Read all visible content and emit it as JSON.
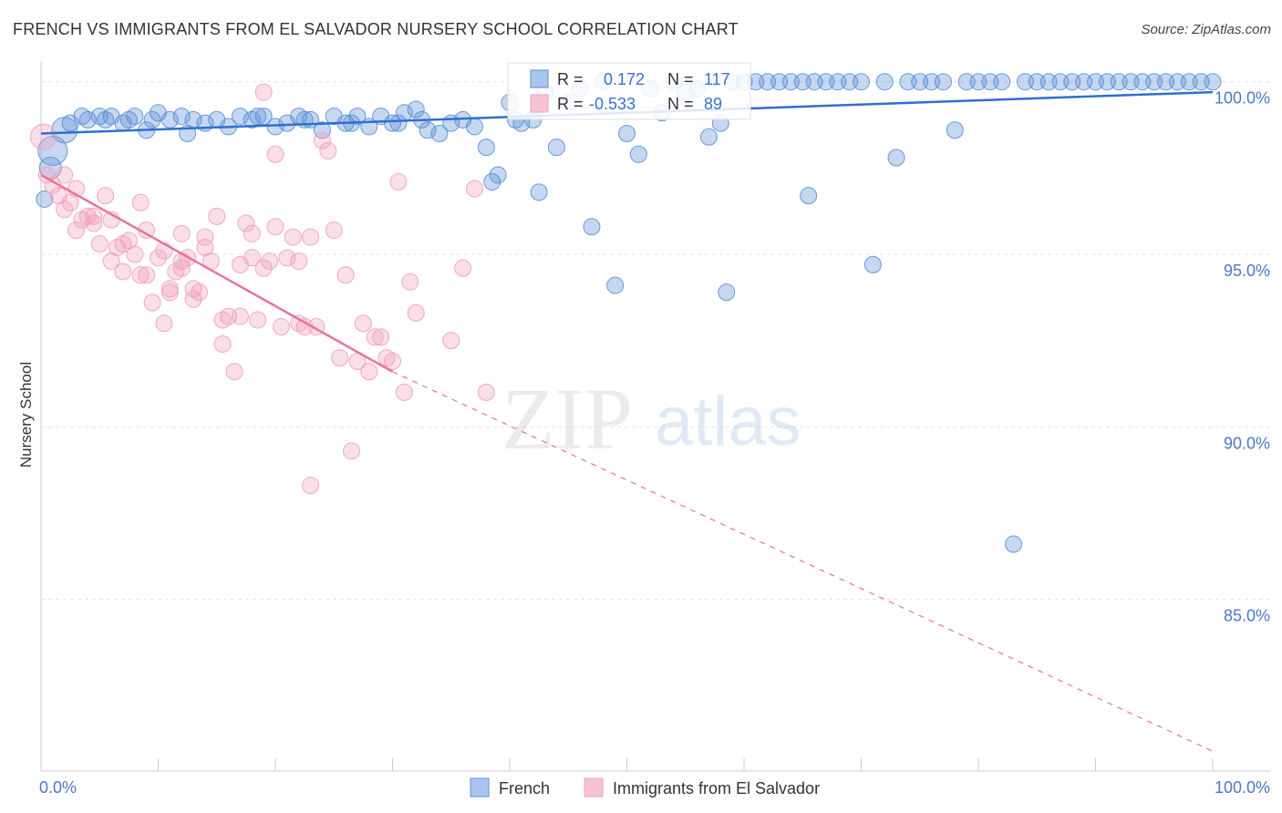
{
  "title": "FRENCH VS IMMIGRANTS FROM EL SALVADOR NURSERY SCHOOL CORRELATION CHART",
  "source": "Source: ZipAtlas.com",
  "watermark": {
    "zip": "ZIP",
    "atlas": "atlas"
  },
  "colors": {
    "french": "#5b8fd6",
    "french_line": "#2f6fd0",
    "salvador": "#f0a0bd",
    "salvador_line": "#e8739a",
    "tick": "#4a78c9",
    "grid": "#e2e2e2"
  },
  "chart_data": {
    "type": "scatter",
    "title": "FRENCH VS IMMIGRANTS FROM EL SALVADOR NURSERY SCHOOL CORRELATION CHART",
    "xlabel": "",
    "ylabel": "Nursery School",
    "xlim": [
      0,
      100
    ],
    "ylim": [
      80.5,
      100.6
    ],
    "x_tick_labels": [
      "0.0%",
      "100.0%"
    ],
    "y_ticks": [
      85,
      90,
      95,
      100
    ],
    "y_tick_labels": [
      "85.0%",
      "90.0%",
      "95.0%",
      "100.0%"
    ],
    "grid": true,
    "legend_position": "top-center",
    "stats": [
      {
        "r_label": "R =",
        "r_value": "0.172",
        "n_label": "N =",
        "n_value": "117"
      },
      {
        "r_label": "R =",
        "r_value": "-0.533",
        "n_label": "N =",
        "n_value": "89"
      }
    ],
    "series": [
      {
        "name": "French",
        "color": "#5b8fd6",
        "trend": {
          "x": [
            0,
            100
          ],
          "y": [
            98.5,
            99.7
          ],
          "dashed": false
        },
        "points": [
          [
            0.3,
            96.6
          ],
          [
            0.8,
            97.5
          ],
          [
            1,
            98
          ],
          [
            2,
            98.6
          ],
          [
            2.5,
            98.8
          ],
          [
            3.5,
            99
          ],
          [
            4,
            98.9
          ],
          [
            5,
            99
          ],
          [
            5.5,
            98.9
          ],
          [
            7,
            98.8
          ],
          [
            8,
            99
          ],
          [
            7.5,
            98.9
          ],
          [
            9,
            98.6
          ],
          [
            10,
            99.1
          ],
          [
            11,
            98.9
          ],
          [
            12,
            99
          ],
          [
            12.5,
            98.5
          ],
          [
            14,
            98.8
          ],
          [
            15,
            98.9
          ],
          [
            16,
            98.7
          ],
          [
            17,
            99
          ],
          [
            18,
            98.9
          ],
          [
            19,
            99
          ],
          [
            20,
            98.7
          ],
          [
            21,
            98.8
          ],
          [
            22,
            99
          ],
          [
            23,
            98.9
          ],
          [
            24,
            98.6
          ],
          [
            25,
            99
          ],
          [
            26,
            98.8
          ],
          [
            27,
            99
          ],
          [
            28,
            98.7
          ],
          [
            29,
            99
          ],
          [
            30,
            98.8
          ],
          [
            31,
            99.1
          ],
          [
            32,
            99.2
          ],
          [
            33,
            98.6
          ],
          [
            34,
            98.5
          ],
          [
            35,
            98.8
          ],
          [
            36,
            98.9
          ],
          [
            37,
            98.7
          ],
          [
            38,
            98.1
          ],
          [
            38.5,
            97.1
          ],
          [
            39,
            97.3
          ],
          [
            40,
            99.4
          ],
          [
            41,
            98.8
          ],
          [
            42,
            98.9
          ],
          [
            43,
            99.7
          ],
          [
            44,
            98.1
          ],
          [
            45,
            99.4
          ],
          [
            46,
            99.8
          ],
          [
            47,
            95.8
          ],
          [
            48,
            100
          ],
          [
            49,
            94.1
          ],
          [
            50,
            98.5
          ],
          [
            51,
            97.9
          ],
          [
            52,
            99.8
          ],
          [
            53,
            99.1
          ],
          [
            54,
            100
          ],
          [
            55,
            99.7
          ],
          [
            56,
            99.8
          ],
          [
            57,
            98.4
          ],
          [
            58,
            98.8
          ],
          [
            58.5,
            93.9
          ],
          [
            59,
            100
          ],
          [
            60,
            100
          ],
          [
            61,
            100
          ],
          [
            62,
            100
          ],
          [
            63,
            100
          ],
          [
            64,
            100
          ],
          [
            65,
            100
          ],
          [
            66,
            100
          ],
          [
            67,
            100
          ],
          [
            68,
            100
          ],
          [
            69,
            100
          ],
          [
            70,
            100
          ],
          [
            71,
            94.7
          ],
          [
            72,
            100
          ],
          [
            73,
            97.8
          ],
          [
            74,
            100
          ],
          [
            75,
            100
          ],
          [
            76,
            100
          ],
          [
            77,
            100
          ],
          [
            78,
            98.6
          ],
          [
            79,
            100
          ],
          [
            80,
            100
          ],
          [
            81,
            100
          ],
          [
            82,
            100
          ],
          [
            83,
            86.6
          ],
          [
            84,
            100
          ],
          [
            85,
            100
          ],
          [
            86,
            100
          ],
          [
            87,
            100
          ],
          [
            88,
            100
          ],
          [
            89,
            100
          ],
          [
            90,
            100
          ],
          [
            91,
            100
          ],
          [
            92,
            100
          ],
          [
            93,
            100
          ],
          [
            94,
            100
          ],
          [
            95,
            100
          ],
          [
            96,
            100
          ],
          [
            97,
            100
          ],
          [
            98,
            100
          ],
          [
            99,
            100
          ],
          [
            100,
            100
          ],
          [
            6,
            99
          ],
          [
            9.5,
            98.9
          ],
          [
            13,
            98.9
          ],
          [
            18.5,
            99
          ],
          [
            22.5,
            98.9
          ],
          [
            26.5,
            98.8
          ],
          [
            30.5,
            98.8
          ],
          [
            40.5,
            98.9
          ],
          [
            32.5,
            98.9
          ],
          [
            42.5,
            96.8
          ],
          [
            65.5,
            96.7
          ]
        ]
      },
      {
        "name": "Immigrants from El Salvador",
        "color": "#f0a0bd",
        "trend": {
          "x": [
            0,
            30
          ],
          "y": [
            97.3,
            91.6
          ],
          "dashed_extension": {
            "x": [
              30,
              100
            ],
            "y": [
              91.6,
              80.6
            ]
          }
        },
        "points": [
          [
            0.2,
            98.4
          ],
          [
            0.5,
            97.3
          ],
          [
            1,
            97
          ],
          [
            1.5,
            96.7
          ],
          [
            2,
            96.3
          ],
          [
            2.5,
            96.5
          ],
          [
            3,
            95.7
          ],
          [
            3.5,
            96
          ],
          [
            4,
            96.1
          ],
          [
            4.5,
            95.9
          ],
          [
            5,
            95.3
          ],
          [
            5.5,
            96.7
          ],
          [
            6,
            94.8
          ],
          [
            6.5,
            95.2
          ],
          [
            7,
            94.5
          ],
          [
            7.5,
            95.4
          ],
          [
            8,
            95
          ],
          [
            8.5,
            94.4
          ],
          [
            9,
            95.7
          ],
          [
            9.5,
            93.6
          ],
          [
            10,
            94.9
          ],
          [
            10.5,
            93
          ],
          [
            11,
            94
          ],
          [
            11.5,
            94.5
          ],
          [
            12,
            95.6
          ],
          [
            12.5,
            94.9
          ],
          [
            13,
            93.7
          ],
          [
            13.5,
            93.9
          ],
          [
            14,
            95.5
          ],
          [
            14.5,
            94.8
          ],
          [
            15,
            96.1
          ],
          [
            15.5,
            92.4
          ],
          [
            16,
            93.2
          ],
          [
            16.5,
            91.6
          ],
          [
            17,
            94.7
          ],
          [
            17.5,
            95.9
          ],
          [
            18,
            95.6
          ],
          [
            18.5,
            93.1
          ],
          [
            19,
            94.6
          ],
          [
            19.5,
            94.8
          ],
          [
            20,
            95.8
          ],
          [
            20.5,
            92.9
          ],
          [
            21,
            94.9
          ],
          [
            21.5,
            95.5
          ],
          [
            22,
            94.8
          ],
          [
            22.5,
            92.9
          ],
          [
            23,
            95.5
          ],
          [
            23.5,
            92.9
          ],
          [
            24,
            98.3
          ],
          [
            24.5,
            98
          ],
          [
            25,
            95.7
          ],
          [
            25.5,
            92
          ],
          [
            26,
            94.4
          ],
          [
            26.5,
            89.3
          ],
          [
            27,
            91.9
          ],
          [
            27.5,
            93
          ],
          [
            28,
            91.6
          ],
          [
            28.5,
            92.6
          ],
          [
            29,
            92.6
          ],
          [
            29.5,
            92
          ],
          [
            30,
            91.9
          ],
          [
            30.5,
            97.1
          ],
          [
            31,
            91
          ],
          [
            31.5,
            94.2
          ],
          [
            32,
            93.3
          ],
          [
            23,
            88.3
          ],
          [
            35,
            92.5
          ],
          [
            36,
            94.6
          ],
          [
            37,
            96.9
          ],
          [
            38,
            91
          ],
          [
            2,
            97.3
          ],
          [
            3,
            96.9
          ],
          [
            4.5,
            96.1
          ],
          [
            6,
            96
          ],
          [
            7,
            95.3
          ],
          [
            8.5,
            96.5
          ],
          [
            10.5,
            95.1
          ],
          [
            12,
            94.6
          ],
          [
            13,
            94
          ],
          [
            14,
            95.2
          ],
          [
            15.5,
            93.1
          ],
          [
            17,
            93.2
          ],
          [
            18,
            94.9
          ],
          [
            20,
            97.9
          ],
          [
            22,
            93
          ],
          [
            19,
            99.7
          ],
          [
            12,
            94.8
          ],
          [
            9,
            94.4
          ],
          [
            11,
            93.9
          ]
        ]
      }
    ]
  }
}
